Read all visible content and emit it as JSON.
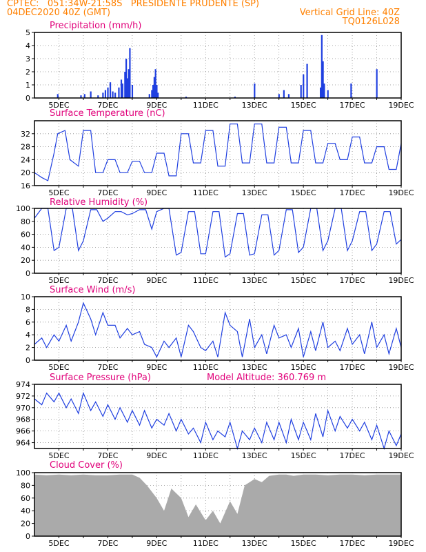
{
  "header": {
    "line1_left": "CPTEC:   051:34W-21:58S   PRESIDENTE PRUDENTE (SP)",
    "line2_left": "04DEC2020 40Z (GMT)",
    "line2_right": "Vertical Grid Line: 40Z",
    "line3_right": "TQ0126L028"
  },
  "colors": {
    "header": "#ff8000",
    "title": "#e0007a",
    "series": "#1f3fe0",
    "cloud": "#aaaaaa",
    "grid": "#888888"
  },
  "x_axis": {
    "labels": [
      "5DEC",
      "7DEC",
      "9DEC",
      "11DEC",
      "13DEC",
      "15DEC",
      "17DEC",
      "19DEC"
    ],
    "range_days": [
      4.0,
      19.0
    ]
  },
  "chart_data": [
    {
      "type": "bar",
      "title": "Precipitation (mm/h)",
      "ylim": [
        0,
        5
      ],
      "yticks": [
        "0",
        "1",
        "2",
        "3",
        "4",
        "5"
      ],
      "values": [
        [
          4.95,
          0.3
        ],
        [
          5.9,
          0.2
        ],
        [
          6.05,
          0.3
        ],
        [
          6.3,
          0.5
        ],
        [
          6.6,
          0.2
        ],
        [
          6.8,
          0.4
        ],
        [
          6.9,
          0.6
        ],
        [
          7.0,
          0.8
        ],
        [
          7.1,
          1.2
        ],
        [
          7.2,
          0.5
        ],
        [
          7.3,
          0.4
        ],
        [
          7.45,
          0.8
        ],
        [
          7.55,
          1.4
        ],
        [
          7.6,
          1.1
        ],
        [
          7.7,
          2.0
        ],
        [
          7.75,
          3.0
        ],
        [
          7.8,
          1.5
        ],
        [
          7.85,
          2.2
        ],
        [
          7.9,
          3.8
        ],
        [
          8.0,
          1.0
        ],
        [
          8.7,
          0.3
        ],
        [
          8.8,
          0.6
        ],
        [
          8.85,
          1.0
        ],
        [
          8.9,
          1.6
        ],
        [
          8.95,
          2.2
        ],
        [
          9.0,
          1.0
        ],
        [
          9.05,
          0.4
        ],
        [
          10.2,
          0.1
        ],
        [
          12.2,
          0.1
        ],
        [
          13.0,
          1.1
        ],
        [
          14.0,
          0.3
        ],
        [
          14.2,
          0.6
        ],
        [
          14.4,
          0.3
        ],
        [
          14.9,
          1.0
        ],
        [
          15.0,
          1.8
        ],
        [
          15.15,
          2.6
        ],
        [
          15.7,
          0.8
        ],
        [
          15.75,
          4.8
        ],
        [
          15.8,
          2.8
        ],
        [
          15.85,
          1.1
        ],
        [
          16.0,
          0.6
        ],
        [
          16.95,
          1.1
        ],
        [
          18.0,
          2.2
        ]
      ]
    },
    {
      "type": "line",
      "title": "Surface Temperature (nC)",
      "ylim": [
        16,
        36
      ],
      "yticks": [
        "16",
        "20",
        "24",
        "28",
        "32"
      ],
      "x": [
        4.0,
        4.3,
        4.55,
        4.8,
        4.95,
        5.25,
        5.45,
        5.8,
        6.0,
        6.3,
        6.5,
        6.8,
        7.0,
        7.3,
        7.5,
        7.8,
        8.0,
        8.3,
        8.5,
        8.8,
        9.0,
        9.3,
        9.5,
        9.8,
        10.0,
        10.3,
        10.5,
        10.8,
        11.0,
        11.3,
        11.5,
        11.8,
        12.0,
        12.3,
        12.5,
        12.8,
        13.0,
        13.3,
        13.5,
        13.8,
        14.0,
        14.3,
        14.5,
        14.8,
        15.0,
        15.3,
        15.5,
        15.8,
        16.0,
        16.3,
        16.5,
        16.8,
        17.0,
        17.3,
        17.5,
        17.8,
        18.0,
        18.3,
        18.5,
        18.8,
        19.0
      ],
      "values": [
        20,
        18.5,
        17.5,
        26,
        32,
        33,
        24,
        22,
        33,
        33,
        20,
        20,
        24,
        24,
        20,
        20,
        23.5,
        23.5,
        20,
        20,
        26,
        26,
        19,
        19,
        32,
        32,
        23,
        23,
        33,
        33,
        22,
        22,
        35,
        35,
        23,
        23,
        35,
        35,
        23,
        23,
        34,
        34,
        23,
        23,
        33,
        33,
        23,
        23,
        29,
        29,
        24,
        24,
        31,
        31,
        23,
        23,
        28,
        28,
        21,
        21,
        29
      ]
    },
    {
      "type": "line",
      "title": "Relative Humidity (%)",
      "ylim": [
        0,
        100
      ],
      "yticks": [
        "0",
        "20",
        "40",
        "60",
        "80",
        "100"
      ],
      "x": [
        4.0,
        4.3,
        4.55,
        4.8,
        5.0,
        5.3,
        5.55,
        5.8,
        6.0,
        6.3,
        6.55,
        6.8,
        7.0,
        7.3,
        7.55,
        7.8,
        8.0,
        8.3,
        8.55,
        8.8,
        9.0,
        9.3,
        9.5,
        9.8,
        10.0,
        10.3,
        10.55,
        10.8,
        11.0,
        11.3,
        11.55,
        11.8,
        12.0,
        12.3,
        12.55,
        12.8,
        13.0,
        13.3,
        13.55,
        13.8,
        14.0,
        14.3,
        14.55,
        14.8,
        15.0,
        15.3,
        15.55,
        15.8,
        16.0,
        16.3,
        16.55,
        16.8,
        17.0,
        17.3,
        17.55,
        17.8,
        18.0,
        18.3,
        18.55,
        18.8,
        19.0
      ],
      "values": [
        85,
        100,
        100,
        35,
        40,
        100,
        100,
        35,
        50,
        98,
        98,
        80,
        85,
        95,
        95,
        90,
        92,
        98,
        98,
        68,
        95,
        100,
        100,
        28,
        32,
        95,
        95,
        30,
        30,
        95,
        95,
        25,
        30,
        92,
        92,
        28,
        30,
        90,
        90,
        28,
        35,
        98,
        98,
        32,
        40,
        100,
        100,
        35,
        50,
        100,
        100,
        35,
        50,
        95,
        95,
        35,
        45,
        95,
        95,
        45,
        52
      ]
    },
    {
      "type": "line",
      "title": "Surface Wind (m/s)",
      "ylim": [
        0,
        10
      ],
      "yticks": [
        "0",
        "2",
        "4",
        "6",
        "8",
        "10"
      ],
      "x": [
        4.0,
        4.3,
        4.5,
        4.8,
        5.0,
        5.3,
        5.5,
        5.8,
        6.0,
        6.3,
        6.5,
        6.8,
        7.0,
        7.3,
        7.5,
        7.8,
        8.0,
        8.3,
        8.5,
        8.8,
        9.0,
        9.3,
        9.5,
        9.8,
        10.0,
        10.3,
        10.5,
        10.8,
        11.0,
        11.3,
        11.5,
        11.8,
        12.0,
        12.3,
        12.5,
        12.8,
        13.0,
        13.3,
        13.5,
        13.8,
        14.0,
        14.3,
        14.5,
        14.8,
        15.0,
        15.3,
        15.5,
        15.8,
        16.0,
        16.3,
        16.5,
        16.8,
        17.0,
        17.3,
        17.5,
        17.8,
        18.0,
        18.3,
        18.5,
        18.8,
        19.0
      ],
      "values": [
        2.5,
        3.5,
        2.0,
        4.0,
        3.0,
        5.5,
        3.0,
        6.0,
        9.0,
        6.5,
        4.0,
        7.5,
        5.5,
        5.5,
        3.5,
        5.0,
        4.0,
        4.5,
        2.5,
        2.0,
        0.5,
        3.0,
        2.0,
        3.5,
        0.5,
        5.5,
        4.5,
        2.0,
        1.5,
        3.0,
        0.5,
        7.5,
        5.5,
        4.5,
        0.5,
        6.5,
        2.0,
        4.0,
        1.0,
        5.5,
        3.5,
        4.0,
        2.0,
        5.0,
        0.5,
        4.5,
        1.5,
        6.0,
        2.0,
        3.0,
        1.5,
        5.0,
        2.5,
        4.0,
        1.0,
        6.0,
        2.0,
        4.0,
        1.0,
        5.0,
        2.0
      ]
    },
    {
      "type": "line",
      "title": "Surface Pressure (hPa)",
      "note": "Model Altitude: 360.769 m",
      "ylim": [
        963,
        974
      ],
      "yticks": [
        "964",
        "966",
        "968",
        "970",
        "972",
        "974"
      ],
      "x": [
        4.0,
        4.3,
        4.5,
        4.8,
        5.0,
        5.3,
        5.5,
        5.8,
        6.0,
        6.3,
        6.5,
        6.8,
        7.0,
        7.3,
        7.5,
        7.8,
        8.0,
        8.3,
        8.5,
        8.8,
        9.0,
        9.3,
        9.5,
        9.8,
        10.0,
        10.3,
        10.5,
        10.8,
        11.0,
        11.3,
        11.5,
        11.8,
        12.0,
        12.3,
        12.5,
        12.8,
        13.0,
        13.3,
        13.5,
        13.8,
        14.0,
        14.3,
        14.5,
        14.8,
        15.0,
        15.3,
        15.5,
        15.8,
        16.0,
        16.3,
        16.5,
        16.8,
        17.0,
        17.3,
        17.5,
        17.8,
        18.0,
        18.3,
        18.5,
        18.8,
        19.0
      ],
      "values": [
        971.5,
        970.5,
        972.5,
        971.0,
        972.5,
        970.0,
        971.5,
        969.0,
        972.5,
        969.5,
        971.0,
        968.5,
        970.5,
        968.0,
        970.0,
        967.5,
        969.5,
        967.0,
        969.5,
        966.5,
        968.0,
        967.0,
        969.0,
        966.0,
        968.0,
        965.5,
        966.5,
        964.0,
        967.5,
        964.5,
        966.0,
        965.0,
        967.5,
        963.0,
        966.0,
        964.5,
        966.5,
        964.0,
        967.5,
        964.5,
        967.5,
        964.0,
        968.0,
        964.5,
        967.5,
        964.5,
        969.0,
        965.0,
        969.5,
        966.0,
        968.5,
        966.5,
        968.0,
        966.0,
        967.5,
        964.5,
        967.0,
        963.0,
        966.0,
        963.5,
        965.5
      ]
    },
    {
      "type": "area",
      "title": "Cloud Cover (%)",
      "ylim": [
        0,
        100
      ],
      "yticks": [
        "0",
        "20",
        "40",
        "60",
        "80",
        "100"
      ],
      "x": [
        4.0,
        4.5,
        5.0,
        5.5,
        6.0,
        6.5,
        7.0,
        7.5,
        8.0,
        8.3,
        8.6,
        9.0,
        9.3,
        9.6,
        10.0,
        10.3,
        10.6,
        11.0,
        11.3,
        11.6,
        12.0,
        12.3,
        12.6,
        13.0,
        13.3,
        13.6,
        14.0,
        14.3,
        14.6,
        15.0,
        15.5,
        16.0,
        16.5,
        17.0,
        17.5,
        18.0,
        18.5,
        19.0
      ],
      "values": [
        97,
        96,
        97,
        96,
        97,
        96,
        96,
        97,
        97,
        92,
        80,
        60,
        40,
        75,
        60,
        30,
        50,
        25,
        40,
        20,
        55,
        35,
        80,
        90,
        85,
        95,
        97,
        97,
        95,
        97,
        97,
        96,
        97,
        97,
        96,
        97,
        97,
        97
      ]
    }
  ]
}
